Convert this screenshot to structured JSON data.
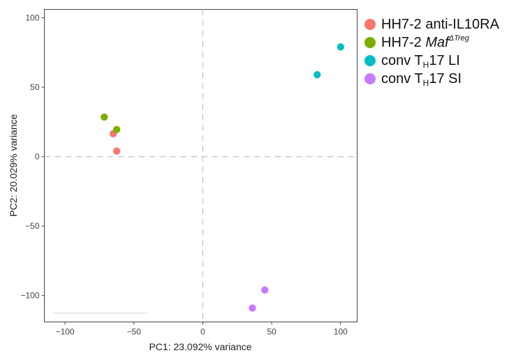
{
  "chart_data": {
    "type": "scatter",
    "title": "",
    "xlabel": "PC1: 23.092% variance",
    "ylabel": "PC2: 20.029% variance",
    "xlim": [
      -115,
      112
    ],
    "ylim": [
      -119,
      106
    ],
    "xticks": [
      -100,
      -50,
      0,
      50,
      100
    ],
    "yticks": [
      100,
      50,
      0,
      -50,
      -100
    ],
    "grid": false,
    "reference_lines": {
      "x": 0,
      "y": 0
    },
    "legend_position": "right",
    "series": [
      {
        "name_parts": [
          "HH7-2 anti-IL10RA"
        ],
        "color": "#F8766D",
        "points": [
          {
            "x": -65,
            "y": 16.5
          },
          {
            "x": -62.5,
            "y": 4
          }
        ]
      },
      {
        "name_parts": [
          "HH7-2 ",
          "Maf",
          "ΔTreg"
        ],
        "color": "#7CAE00",
        "points": [
          {
            "x": -71.5,
            "y": 28.5
          },
          {
            "x": -62.5,
            "y": 19.5
          }
        ]
      },
      {
        "name_parts": [
          "conv T",
          "H",
          "17 LI"
        ],
        "color": "#00BFC4",
        "points": [
          {
            "x": 83,
            "y": 59
          },
          {
            "x": 100,
            "y": 79
          }
        ]
      },
      {
        "name_parts": [
          "conv T",
          "H",
          "17 SI"
        ],
        "color": "#C77CFF",
        "points": [
          {
            "x": 45,
            "y": -96
          },
          {
            "x": 36,
            "y": -109
          }
        ]
      }
    ]
  }
}
